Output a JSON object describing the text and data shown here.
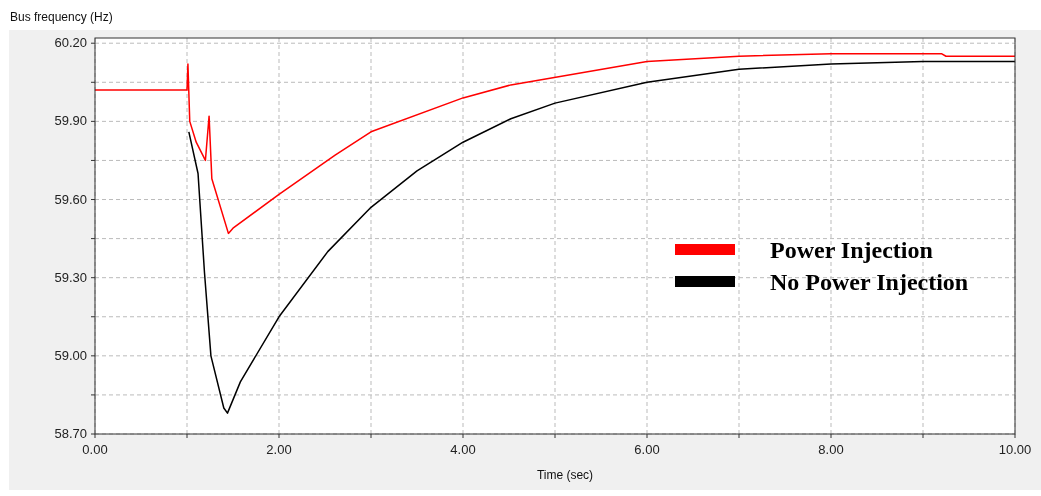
{
  "chart_data": {
    "type": "line",
    "xlabel": "Time (sec)",
    "ylabel": "Bus frequency (Hz)",
    "xlim": [
      0,
      10
    ],
    "ylim": [
      58.7,
      60.22
    ],
    "xticks": [
      {
        "value": 0,
        "label": "0.00"
      },
      {
        "value": 1,
        "label": null
      },
      {
        "value": 2,
        "label": "2.00"
      },
      {
        "value": 3,
        "label": null
      },
      {
        "value": 4,
        "label": "4.00"
      },
      {
        "value": 5,
        "label": null
      },
      {
        "value": 6,
        "label": "6.00"
      },
      {
        "value": 7,
        "label": null
      },
      {
        "value": 8,
        "label": "8.00"
      },
      {
        "value": 9,
        "label": null
      },
      {
        "value": 10,
        "label": "10.00"
      }
    ],
    "yticks": [
      {
        "value": 58.7,
        "label": "58.70"
      },
      {
        "value": 58.85,
        "label": null
      },
      {
        "value": 59.0,
        "label": "59.00"
      },
      {
        "value": 59.15,
        "label": null
      },
      {
        "value": 59.3,
        "label": "59.30"
      },
      {
        "value": 59.45,
        "label": null
      },
      {
        "value": 59.6,
        "label": "59.60"
      },
      {
        "value": 59.75,
        "label": null
      },
      {
        "value": 59.9,
        "label": "59.90"
      },
      {
        "value": 60.05,
        "label": null
      },
      {
        "value": 60.2,
        "label": "60.20"
      }
    ],
    "grid": true,
    "legend": "right",
    "line_style": "solid",
    "marker": "none",
    "series": [
      {
        "name": "No Power Injection",
        "color": "#000000",
        "x": [
          1.02,
          1.12,
          1.19,
          1.26,
          1.4,
          1.44,
          1.58,
          2.0,
          2.53,
          3.0,
          3.5,
          4.0,
          4.52,
          5.0,
          6.0,
          7.0,
          8.0,
          9.0,
          10.0
        ],
        "values": [
          59.86,
          59.7,
          59.32,
          59.0,
          58.8,
          58.78,
          58.9,
          59.15,
          59.4,
          59.57,
          59.71,
          59.82,
          59.91,
          59.97,
          60.05,
          60.1,
          60.12,
          60.13,
          60.13
        ]
      },
      {
        "name": "Power Injection",
        "color": "#ff0000",
        "x": [
          0,
          1.0,
          1.01,
          1.03,
          1.1,
          1.2,
          1.24,
          1.27,
          1.45,
          1.5,
          2.0,
          2.61,
          3.0,
          4.0,
          4.52,
          6.0,
          7.0,
          8.0,
          9.2,
          9.25,
          10.0
        ],
        "values": [
          60.02,
          60.02,
          60.12,
          59.9,
          59.82,
          59.75,
          59.92,
          59.68,
          59.47,
          59.49,
          59.62,
          59.77,
          59.86,
          59.99,
          60.04,
          60.13,
          60.15,
          60.16,
          60.16,
          60.15,
          60.15
        ]
      }
    ]
  }
}
